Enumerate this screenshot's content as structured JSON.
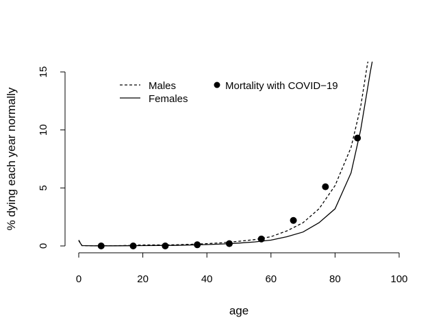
{
  "chart_data": {
    "type": "line",
    "xlabel": "age",
    "ylabel": "% dying each year normally",
    "xlim": [
      0,
      100
    ],
    "ylim": [
      0,
      15
    ],
    "x_ticks": [
      0,
      20,
      40,
      60,
      80,
      100
    ],
    "y_ticks": [
      0,
      5,
      10,
      15
    ],
    "grid": false,
    "legend_placement": "top",
    "series": [
      {
        "name": "Males",
        "style": "dashed",
        "color": "#000000",
        "x": [
          0,
          1,
          5,
          10,
          15,
          20,
          25,
          30,
          35,
          40,
          45,
          50,
          55,
          60,
          65,
          70,
          75,
          80,
          85,
          88,
          90,
          91
        ],
        "y": [
          0.5,
          0.03,
          0.01,
          0.01,
          0.04,
          0.08,
          0.09,
          0.1,
          0.14,
          0.2,
          0.28,
          0.4,
          0.55,
          0.8,
          1.3,
          2.0,
          3.2,
          5.2,
          8.5,
          12.0,
          15.5,
          17.0
        ]
      },
      {
        "name": "Females",
        "style": "solid",
        "color": "#000000",
        "x": [
          0,
          1,
          5,
          10,
          15,
          20,
          25,
          30,
          35,
          40,
          45,
          50,
          55,
          60,
          65,
          70,
          75,
          80,
          85,
          88,
          91,
          92
        ],
        "y": [
          0.45,
          0.03,
          0.01,
          0.01,
          0.02,
          0.03,
          0.04,
          0.05,
          0.08,
          0.12,
          0.17,
          0.25,
          0.35,
          0.5,
          0.8,
          1.2,
          2.0,
          3.2,
          6.3,
          10.0,
          15.0,
          16.5
        ]
      },
      {
        "name": "Mortality with COVID−19",
        "style": "points",
        "color": "#000000",
        "x": [
          7,
          17,
          27,
          37,
          47,
          57,
          67,
          77,
          87
        ],
        "y": [
          0.0,
          0.0,
          0.0,
          0.1,
          0.2,
          0.6,
          2.2,
          5.1,
          9.3
        ]
      }
    ]
  }
}
